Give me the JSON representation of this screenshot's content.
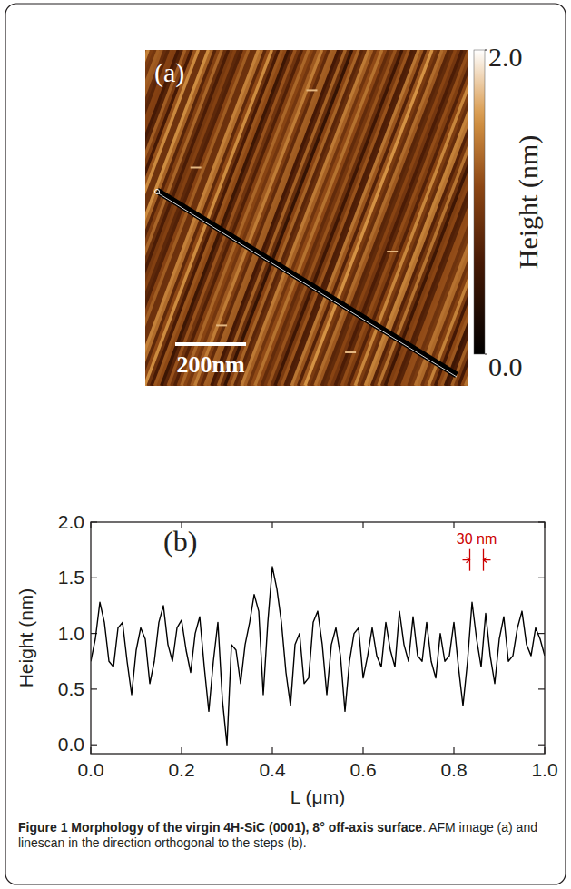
{
  "chart_data": [
    {
      "type": "image",
      "panel_label": "(a)",
      "scale_bar": "200nm",
      "colorbar": {
        "label": "Height (nm)",
        "lim": [
          0,
          2
        ],
        "ticks": [
          {
            "value": 0,
            "label": "0.0"
          },
          {
            "value": 2,
            "label": "2.0"
          }
        ]
      }
    },
    {
      "type": "line",
      "panel_label": "(b)",
      "xlabel": "L (μm)",
      "ylabel": "Height (nm)",
      "color": "#000000",
      "x": [
        0.0,
        0.01,
        0.02,
        0.03,
        0.04,
        0.05,
        0.06,
        0.07,
        0.08,
        0.09,
        0.1,
        0.11,
        0.12,
        0.13,
        0.14,
        0.15,
        0.16,
        0.17,
        0.18,
        0.19,
        0.2,
        0.21,
        0.22,
        0.23,
        0.24,
        0.25,
        0.26,
        0.27,
        0.28,
        0.29,
        0.3,
        0.31,
        0.32,
        0.33,
        0.34,
        0.35,
        0.36,
        0.37,
        0.38,
        0.39,
        0.4,
        0.41,
        0.42,
        0.43,
        0.44,
        0.45,
        0.46,
        0.47,
        0.48,
        0.49,
        0.5,
        0.51,
        0.52,
        0.53,
        0.54,
        0.55,
        0.56,
        0.57,
        0.58,
        0.59,
        0.6,
        0.61,
        0.62,
        0.63,
        0.64,
        0.65,
        0.66,
        0.67,
        0.68,
        0.69,
        0.7,
        0.71,
        0.72,
        0.73,
        0.74,
        0.75,
        0.76,
        0.77,
        0.78,
        0.79,
        0.8,
        0.81,
        0.82,
        0.83,
        0.84,
        0.85,
        0.86,
        0.87,
        0.88,
        0.89,
        0.9,
        0.91,
        0.92,
        0.93,
        0.94,
        0.95,
        0.96,
        0.97,
        0.98,
        0.99,
        1.0
      ],
      "values": [
        0.75,
        0.95,
        1.28,
        1.1,
        0.75,
        0.7,
        1.05,
        1.1,
        0.75,
        0.45,
        0.85,
        1.05,
        0.95,
        0.55,
        0.75,
        1.1,
        1.25,
        0.9,
        0.75,
        1.05,
        1.12,
        0.85,
        0.65,
        1.0,
        1.15,
        0.7,
        0.3,
        0.75,
        1.1,
        0.4,
        0.0,
        0.9,
        0.85,
        0.55,
        0.9,
        1.1,
        1.35,
        1.2,
        0.45,
        1.1,
        1.6,
        1.4,
        1.1,
        0.65,
        0.35,
        0.9,
        1.0,
        0.55,
        0.6,
        1.1,
        1.2,
        0.9,
        0.45,
        0.9,
        1.05,
        0.8,
        0.3,
        0.75,
        1.0,
        1.05,
        0.6,
        0.8,
        1.05,
        0.8,
        0.7,
        1.1,
        0.85,
        0.7,
        1.2,
        0.9,
        0.75,
        1.15,
        0.8,
        0.75,
        1.1,
        0.75,
        0.6,
        1.0,
        0.75,
        0.8,
        1.1,
        0.7,
        0.35,
        0.75,
        1.28,
        0.95,
        0.7,
        1.18,
        0.8,
        0.55,
        0.95,
        1.15,
        0.75,
        0.8,
        1.05,
        1.2,
        0.9,
        0.8,
        1.05,
        0.95,
        0.8
      ],
      "xlim": [
        0,
        1
      ],
      "ylim": [
        -0.08,
        2.0
      ],
      "xticks": [
        {
          "value": 0,
          "label": "0.0"
        },
        0.2,
        0.4,
        0.6,
        0.8,
        {
          "value": 1,
          "label": "1.0"
        }
      ],
      "yticks": [
        {
          "value": 0,
          "label": "0.0"
        },
        0.5,
        {
          "value": 1,
          "label": "1.0"
        },
        1.5,
        {
          "value": 2,
          "label": "2.0"
        }
      ],
      "annotations": [
        {
          "text": "30 nm",
          "x": [
            0.835,
            0.865
          ],
          "y": 1.66,
          "color": "#cc0000"
        }
      ]
    }
  ],
  "caption": {
    "title": "Figure 1 Morphology of the virgin 4H-SiC (0001), 8° off-axis surface",
    "text": ". AFM image (a) and linescan in the direction orthogonal to the steps (b)."
  }
}
